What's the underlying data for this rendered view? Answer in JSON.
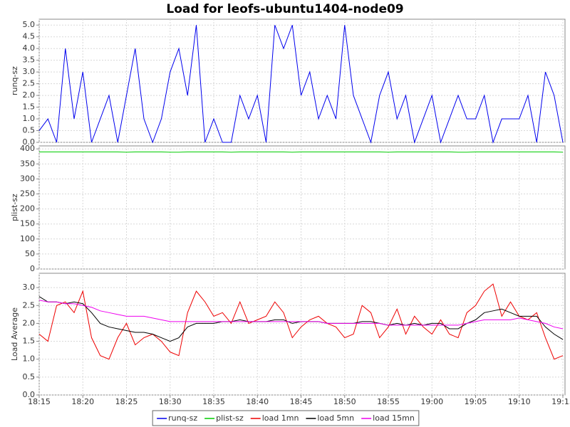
{
  "chart_data": [
    {
      "type": "line",
      "title": "Load for leofs-ubuntu1404-node09",
      "ylabel": "runq-sz",
      "x": [
        "18:15",
        "18:16",
        "18:17",
        "18:18",
        "18:19",
        "18:20",
        "18:21",
        "18:22",
        "18:23",
        "18:24",
        "18:25",
        "18:26",
        "18:27",
        "18:28",
        "18:29",
        "18:30",
        "18:31",
        "18:32",
        "18:33",
        "18:34",
        "18:35",
        "18:36",
        "18:37",
        "18:38",
        "18:39",
        "18:40",
        "18:41",
        "18:42",
        "18:43",
        "18:44",
        "18:45",
        "18:46",
        "18:47",
        "18:48",
        "18:49",
        "18:50",
        "18:51",
        "18:52",
        "18:53",
        "18:54",
        "18:55",
        "18:56",
        "18:57",
        "18:58",
        "18:59",
        "19:00",
        "19:01",
        "19:02",
        "19:03",
        "19:04",
        "19:05",
        "19:06",
        "19:07",
        "19:08",
        "19:09",
        "19:10",
        "19:11",
        "19:12",
        "19:13",
        "19:14",
        "19:15"
      ],
      "series": [
        {
          "name": "runq-sz",
          "color": "#0000ee",
          "values": [
            0.5,
            1,
            0,
            4,
            1,
            3,
            0,
            1,
            2,
            0,
            2,
            4,
            1,
            0,
            1,
            3,
            4,
            2,
            5,
            0,
            1,
            0,
            0,
            2,
            1,
            2,
            0,
            5,
            4,
            5,
            2,
            3,
            1,
            2,
            1,
            5,
            2,
            1,
            0,
            2,
            3,
            1,
            2,
            0,
            1,
            2,
            0,
            1,
            2,
            1,
            1,
            2,
            0,
            1,
            1,
            1,
            2,
            0,
            3,
            2,
            0
          ]
        }
      ],
      "ylim": [
        0,
        5.25
      ],
      "yticks": [
        {
          "value": 0,
          "label": "0.0"
        },
        {
          "value": 0.5,
          "label": "0.5"
        },
        {
          "value": 1,
          "label": "1.0"
        },
        {
          "value": 1.5,
          "label": "1.5"
        },
        {
          "value": 2,
          "label": "2.0"
        },
        {
          "value": 2.5,
          "label": "2.5"
        },
        {
          "value": 3,
          "label": "3.0"
        },
        {
          "value": 3.5,
          "label": "3.5"
        },
        {
          "value": 4,
          "label": "4.0"
        },
        {
          "value": 4.5,
          "label": "4.5"
        },
        {
          "value": 5,
          "label": "5.0"
        }
      ],
      "grid": true
    },
    {
      "type": "line",
      "ylabel": "plist-sz",
      "x": [
        "18:15",
        "18:16",
        "18:17",
        "18:18",
        "18:19",
        "18:20",
        "18:21",
        "18:22",
        "18:23",
        "18:24",
        "18:25",
        "18:26",
        "18:27",
        "18:28",
        "18:29",
        "18:30",
        "18:31",
        "18:32",
        "18:33",
        "18:34",
        "18:35",
        "18:36",
        "18:37",
        "18:38",
        "18:39",
        "18:40",
        "18:41",
        "18:42",
        "18:43",
        "18:44",
        "18:45",
        "18:46",
        "18:47",
        "18:48",
        "18:49",
        "18:50",
        "18:51",
        "18:52",
        "18:53",
        "18:54",
        "18:55",
        "18:56",
        "18:57",
        "18:58",
        "18:59",
        "19:00",
        "19:01",
        "19:02",
        "19:03",
        "19:04",
        "19:05",
        "19:06",
        "19:07",
        "19:08",
        "19:09",
        "19:10",
        "19:11",
        "19:12",
        "19:13",
        "19:14",
        "19:15"
      ],
      "series": [
        {
          "name": "plist-sz",
          "color": "#00cc00",
          "values": [
            390,
            390,
            390,
            390,
            390,
            390,
            390,
            390,
            390,
            390,
            389,
            390,
            390,
            390,
            390,
            389,
            389,
            390,
            390,
            390,
            390,
            390,
            389,
            390,
            390,
            390,
            390,
            390,
            390,
            389,
            390,
            390,
            390,
            390,
            390,
            390,
            390,
            390,
            390,
            390,
            389,
            390,
            390,
            390,
            390,
            390,
            390,
            390,
            389,
            389,
            390,
            390,
            390,
            390,
            390,
            390,
            390,
            390,
            390,
            390,
            389
          ]
        }
      ],
      "ylim": [
        0,
        410
      ],
      "yticks": [
        0,
        50,
        100,
        150,
        200,
        250,
        300,
        350,
        400
      ],
      "grid": true
    },
    {
      "type": "line",
      "ylabel": "Load Average",
      "x": [
        "18:15",
        "18:16",
        "18:17",
        "18:18",
        "18:19",
        "18:20",
        "18:21",
        "18:22",
        "18:23",
        "18:24",
        "18:25",
        "18:26",
        "18:27",
        "18:28",
        "18:29",
        "18:30",
        "18:31",
        "18:32",
        "18:33",
        "18:34",
        "18:35",
        "18:36",
        "18:37",
        "18:38",
        "18:39",
        "18:40",
        "18:41",
        "18:42",
        "18:43",
        "18:44",
        "18:45",
        "18:46",
        "18:47",
        "18:48",
        "18:49",
        "18:50",
        "18:51",
        "18:52",
        "18:53",
        "18:54",
        "18:55",
        "18:56",
        "18:57",
        "18:58",
        "18:59",
        "19:00",
        "19:01",
        "19:02",
        "19:03",
        "19:04",
        "19:05",
        "19:06",
        "19:07",
        "19:08",
        "19:09",
        "19:10",
        "19:11",
        "19:12",
        "19:13",
        "19:14",
        "19:15"
      ],
      "series": [
        {
          "name": "load 1mn",
          "color": "#ee0000",
          "values": [
            1.7,
            1.5,
            2.5,
            2.6,
            2.3,
            2.9,
            1.6,
            1.1,
            1.0,
            1.6,
            2.0,
            1.4,
            1.6,
            1.7,
            1.5,
            1.2,
            1.1,
            2.3,
            2.9,
            2.6,
            2.2,
            2.3,
            2.0,
            2.6,
            2.0,
            2.1,
            2.2,
            2.6,
            2.3,
            1.6,
            1.9,
            2.1,
            2.2,
            2.0,
            1.9,
            1.6,
            1.7,
            2.5,
            2.3,
            1.6,
            1.9,
            2.4,
            1.7,
            2.2,
            1.9,
            1.7,
            2.1,
            1.7,
            1.6,
            2.3,
            2.5,
            2.9,
            3.1,
            2.2,
            2.6,
            2.2,
            2.1,
            2.3,
            1.6,
            1.0,
            1.1
          ]
        },
        {
          "name": "load 5mn",
          "color": "#000000",
          "values": [
            2.75,
            2.6,
            2.6,
            2.55,
            2.6,
            2.55,
            2.3,
            2.0,
            1.9,
            1.85,
            1.8,
            1.75,
            1.75,
            1.7,
            1.6,
            1.5,
            1.6,
            1.9,
            2.0,
            2.0,
            2.0,
            2.05,
            2.05,
            2.1,
            2.05,
            2.05,
            2.05,
            2.1,
            2.1,
            2.0,
            2.05,
            2.05,
            2.05,
            2.0,
            2.0,
            2.0,
            2.0,
            2.05,
            2.05,
            2.0,
            1.95,
            2.0,
            1.95,
            2.0,
            1.95,
            2.0,
            2.0,
            1.85,
            1.85,
            2.0,
            2.1,
            2.3,
            2.35,
            2.4,
            2.3,
            2.2,
            2.2,
            2.2,
            1.9,
            1.7,
            1.55
          ]
        },
        {
          "name": "load 15mn",
          "color": "#ee00ee",
          "values": [
            2.65,
            2.6,
            2.6,
            2.55,
            2.55,
            2.5,
            2.45,
            2.35,
            2.3,
            2.25,
            2.2,
            2.2,
            2.2,
            2.15,
            2.1,
            2.05,
            2.05,
            2.05,
            2.05,
            2.05,
            2.05,
            2.05,
            2.05,
            2.05,
            2.05,
            2.05,
            2.05,
            2.05,
            2.05,
            2.05,
            2.05,
            2.05,
            2.05,
            2.0,
            2.0,
            2.0,
            2.0,
            2.0,
            2.0,
            2.0,
            1.95,
            1.95,
            1.95,
            1.95,
            1.95,
            1.95,
            1.95,
            1.95,
            1.95,
            2.0,
            2.05,
            2.1,
            2.1,
            2.1,
            2.1,
            2.15,
            2.1,
            2.05,
            2.0,
            1.9,
            1.85
          ]
        }
      ],
      "ylim": [
        0,
        3.4
      ],
      "yticks": [
        {
          "value": 0,
          "label": "0.0"
        },
        {
          "value": 0.5,
          "label": "0.5"
        },
        {
          "value": 1,
          "label": "1.0"
        },
        {
          "value": 1.5,
          "label": "1.5"
        },
        {
          "value": 2,
          "label": "2.0"
        },
        {
          "value": 2.5,
          "label": "2.5"
        },
        {
          "value": 3,
          "label": "3.0"
        }
      ],
      "xlim": [
        "18:15",
        "19:15"
      ],
      "xticks": [
        "18:15",
        "18:20",
        "18:25",
        "18:30",
        "18:35",
        "18:40",
        "18:45",
        "18:50",
        "18:55",
        "19:00",
        "19:05",
        "19:10",
        "19:15"
      ],
      "grid": true
    }
  ]
}
